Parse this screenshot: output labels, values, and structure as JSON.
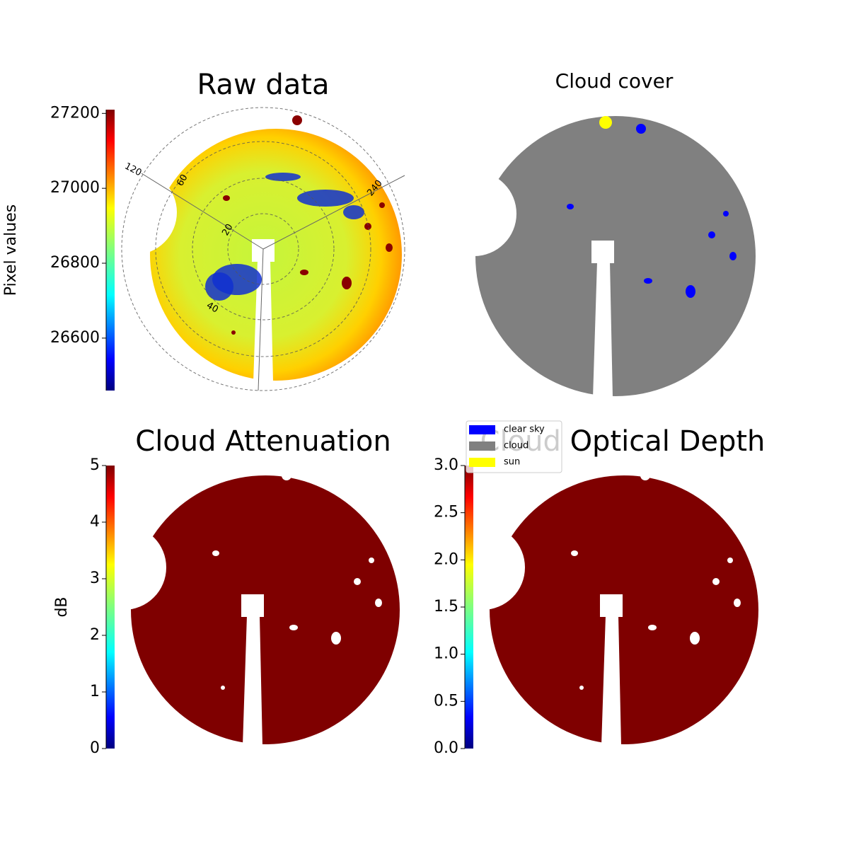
{
  "chart_data": [
    {
      "type": "image",
      "title": "Raw data",
      "colorbar": {
        "label": "Pixel values",
        "colormap": "jet",
        "ylim": [
          26460,
          27210
        ],
        "yticks": [
          26600,
          26800,
          27000,
          27200
        ]
      },
      "annotations": [
        "120",
        "60",
        "20",
        "40",
        "240"
      ]
    },
    {
      "type": "image",
      "title": "Cloud cover",
      "legend": "lower left",
      "series": [
        {
          "name": "clear sky",
          "color": "#0000ff"
        },
        {
          "name": "cloud",
          "color": "#808080"
        },
        {
          "name": "sun",
          "color": "#ffff00"
        }
      ]
    },
    {
      "type": "image",
      "title": "Cloud Attenuation",
      "colorbar": {
        "label": "dB",
        "colormap": "jet",
        "ylim": [
          0,
          5
        ],
        "yticks": [
          0,
          1,
          2,
          3,
          4,
          5
        ]
      }
    },
    {
      "type": "image",
      "title": "Cloud Optical Depth",
      "colorbar": {
        "colormap": "jet",
        "ylim": [
          0,
          3
        ],
        "yticks": [
          {
            "value": 0,
            "label": "0.0"
          },
          {
            "value": 0.5,
            "label": "0.5"
          },
          {
            "value": 1,
            "label": "1.0"
          },
          {
            "value": 1.5,
            "label": "1.5"
          },
          {
            "value": 2,
            "label": "2.0"
          },
          {
            "value": 2.5,
            "label": "2.5"
          },
          {
            "value": 3,
            "label": "3.0"
          }
        ]
      }
    }
  ]
}
